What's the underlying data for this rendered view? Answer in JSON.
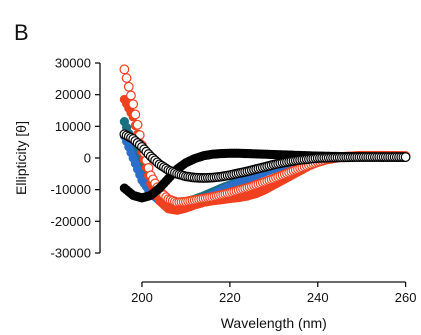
{
  "panel_label": "B",
  "chart_data": {
    "type": "scatter",
    "title": "",
    "xlabel": "Wavelength (nm)",
    "ylabel": "Ellipticity [θ]",
    "xlim": [
      195,
      261
    ],
    "ylim": [
      -30000,
      30000
    ],
    "x_ticks": [
      200,
      220,
      240,
      260
    ],
    "y_ticks": [
      30000,
      20000,
      10000,
      0,
      -10000,
      -20000,
      -30000
    ],
    "grid": false,
    "legend": "none",
    "series": [
      {
        "color": "#1a6f82",
        "marker": "filled-circle",
        "x": [
          196,
          198,
          200,
          202,
          204,
          206,
          208,
          210,
          212,
          214,
          216,
          218,
          220,
          222,
          224,
          226,
          228,
          230,
          232,
          234,
          236,
          238,
          240,
          245,
          250,
          255,
          260
        ],
        "y": [
          11500,
          4000,
          -4000,
          -9500,
          -12500,
          -13500,
          -14000,
          -13800,
          -13000,
          -12000,
          -10800,
          -9600,
          -8500,
          -7400,
          -6300,
          -5200,
          -4200,
          -3200,
          -2300,
          -1600,
          -900,
          -400,
          0,
          300,
          400,
          500,
          500
        ]
      },
      {
        "color": "#2a6fc9",
        "marker": "filled-circle",
        "x": [
          196,
          198,
          200,
          202,
          204,
          206,
          208,
          210,
          212,
          214,
          216,
          218,
          220,
          222,
          224,
          226,
          228,
          230,
          232,
          234,
          236,
          238,
          240,
          245,
          250,
          255,
          260
        ],
        "y": [
          7000,
          0,
          -7000,
          -11000,
          -13500,
          -14500,
          -15000,
          -14800,
          -14000,
          -13000,
          -11700,
          -10300,
          -9000,
          -7800,
          -6600,
          -5400,
          -4300,
          -3300,
          -2400,
          -1600,
          -900,
          -400,
          0,
          300,
          400,
          500,
          500
        ]
      },
      {
        "color": "#f04020",
        "marker": "filled-circle",
        "x": [
          196,
          198,
          200,
          202,
          204,
          206,
          208,
          210,
          212,
          214,
          216,
          218,
          220,
          222,
          224,
          226,
          228,
          230,
          232,
          234,
          236,
          238,
          240,
          242,
          244,
          246,
          250,
          255,
          260
        ],
        "y": [
          18500,
          13000,
          2000,
          -8000,
          -13500,
          -16000,
          -16500,
          -15800,
          -14800,
          -14000,
          -13500,
          -13200,
          -12800,
          -12500,
          -12000,
          -11200,
          -10000,
          -8500,
          -7000,
          -5500,
          -4000,
          -2500,
          -1300,
          -500,
          0,
          500,
          800,
          800,
          700
        ]
      },
      {
        "color": "#f04020",
        "marker": "open-circle",
        "x": [
          196,
          198,
          200,
          202,
          204,
          206,
          208,
          210,
          212,
          214,
          216,
          218,
          220,
          222,
          224,
          226,
          228,
          230,
          232,
          234,
          236,
          238,
          240,
          242,
          244,
          246,
          250,
          255,
          260
        ],
        "y": [
          28000,
          17000,
          4000,
          -5500,
          -10500,
          -13000,
          -14000,
          -13800,
          -13300,
          -12800,
          -12300,
          -11700,
          -11000,
          -10200,
          -9400,
          -8500,
          -7500,
          -6500,
          -5400,
          -4300,
          -3200,
          -2200,
          -1300,
          -500,
          0,
          400,
          700,
          700,
          600
        ]
      },
      {
        "color": "#000000",
        "marker": "filled-circle",
        "x": [
          196,
          198,
          200,
          202,
          204,
          206,
          208,
          210,
          212,
          214,
          216,
          218,
          220,
          222,
          224,
          226,
          228,
          230,
          232,
          234,
          236,
          238,
          240,
          245,
          250,
          255,
          260
        ],
        "y": [
          -9500,
          -11800,
          -12600,
          -11800,
          -9500,
          -6500,
          -3500,
          -1500,
          -200,
          700,
          1200,
          1400,
          1500,
          1500,
          1400,
          1300,
          1200,
          1100,
          1000,
          900,
          800,
          700,
          600,
          500,
          400,
          300,
          200
        ]
      },
      {
        "color": "#000000",
        "marker": "open-circle",
        "x": [
          196,
          198,
          200,
          202,
          204,
          206,
          208,
          210,
          212,
          214,
          216,
          218,
          220,
          222,
          224,
          226,
          228,
          230,
          232,
          234,
          236,
          238,
          240,
          245,
          250,
          255,
          260
        ],
        "y": [
          7500,
          6000,
          3500,
          500,
          -2000,
          -3800,
          -5000,
          -5800,
          -6200,
          -6300,
          -6200,
          -5900,
          -5400,
          -4800,
          -4200,
          -3500,
          -2800,
          -2100,
          -1500,
          -1000,
          -600,
          -300,
          0,
          200,
          300,
          300,
          300
        ]
      }
    ]
  }
}
